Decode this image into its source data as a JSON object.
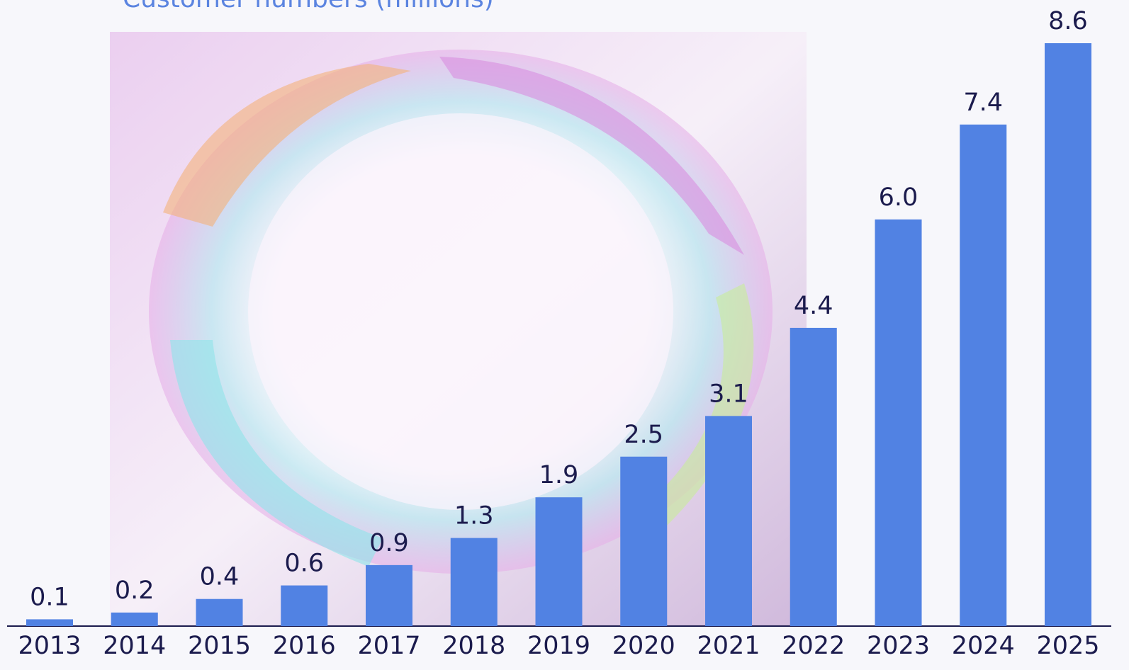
{
  "chart_data": {
    "type": "bar",
    "title": "Customer numbers (millions)",
    "categories": [
      "2013",
      "2014",
      "2015",
      "2016",
      "2017",
      "2018",
      "2019",
      "2020",
      "2021",
      "2022",
      "2023",
      "2024",
      "2025"
    ],
    "values": [
      0.1,
      0.2,
      0.4,
      0.6,
      0.9,
      1.3,
      1.9,
      2.5,
      3.1,
      4.4,
      6.0,
      7.4,
      8.6
    ],
    "value_labels": [
      "0.1",
      "0.2",
      "0.4",
      "0.6",
      "0.9",
      "1.3",
      "1.9",
      "2.5",
      "3.1",
      "4.4",
      "6.0",
      "7.4",
      "8.6"
    ],
    "color": "#5182e3"
  }
}
